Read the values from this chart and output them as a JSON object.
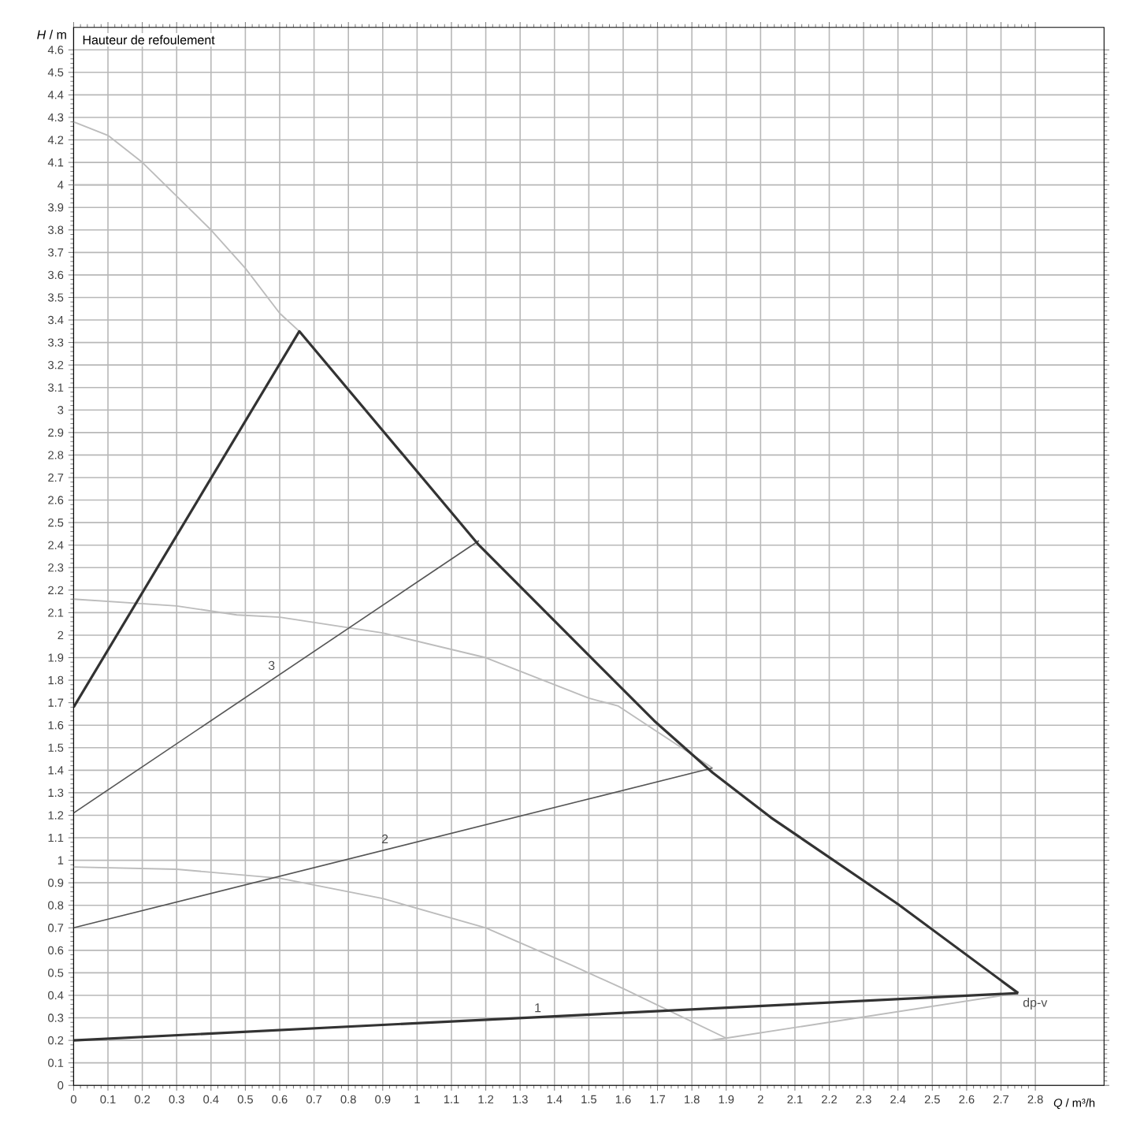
{
  "chart_data": {
    "type": "line",
    "xlabel": "*Q* / m³/h",
    "ylabel": "*H* / m",
    "xlim": [
      0,
      3.0
    ],
    "ylim": [
      0,
      4.7
    ],
    "xticks": [
      0,
      0.1,
      0.2,
      0.3,
      0.4,
      0.5,
      0.6,
      0.7,
      0.8,
      0.9,
      1,
      1.1,
      1.2,
      1.3,
      1.4,
      1.5,
      1.6,
      1.7,
      1.8,
      1.9,
      2,
      2.1,
      2.2,
      2.3,
      2.4,
      2.5,
      2.6,
      2.7,
      2.8
    ],
    "yticks": [
      0,
      0.1,
      0.2,
      0.3,
      0.4,
      0.5,
      0.6,
      0.7,
      0.8,
      0.9,
      1,
      1.1,
      1.2,
      1.3,
      1.4,
      1.5,
      1.6,
      1.7,
      1.8,
      1.9,
      2,
      2.1,
      2.2,
      2.3,
      2.4,
      2.5,
      2.6,
      2.7,
      2.8,
      2.9,
      3,
      3.1,
      3.2,
      3.3,
      3.4,
      3.5,
      3.6,
      3.7,
      3.8,
      3.9,
      4,
      4.1,
      4.2,
      4.3,
      4.4,
      4.5,
      4.6
    ],
    "grid": true,
    "series": [
      {
        "color": "#bcbcbc",
        "x": [
          0,
          0.1,
          0.2,
          0.3,
          0.4,
          0.5,
          0.6,
          0.657
        ],
        "values": [
          4.28,
          4.22,
          4.1,
          3.95,
          3.8,
          3.63,
          3.43,
          3.35
        ]
      },
      {
        "color": "#bcbcbc",
        "x": [
          0,
          0.3
        ],
        "values": [
          4.0,
          4.0
        ]
      },
      {
        "color": "#bcbcbc",
        "x": [
          0,
          0.3,
          0.475,
          0.6,
          0.9,
          1.2,
          1.5,
          1.586,
          1.7,
          1.86
        ],
        "values": [
          2.16,
          2.13,
          2.09,
          2.08,
          2.01,
          1.9,
          1.72,
          1.685,
          1.57,
          1.41
        ]
      },
      {
        "color": "#bcbcbc",
        "x": [
          0,
          0.3,
          0.6,
          0.9,
          1.2,
          1.447,
          1.6,
          1.75,
          1.9
        ],
        "values": [
          0.97,
          0.96,
          0.92,
          0.83,
          0.7,
          0.536,
          0.43,
          0.32,
          0.21
        ]
      },
      {
        "color": "#bcbcbc",
        "x": [
          1.85,
          1.9,
          2.75
        ],
        "values": [
          0.2,
          0.21,
          0.41
        ]
      },
      {
        "color": "#555555",
        "x": [
          0,
          1.86
        ],
        "values": [
          0.7,
          1.41
        ]
      },
      {
        "color": "#555555",
        "x": [
          0,
          1.18
        ],
        "values": [
          1.21,
          2.42
        ]
      },
      {
        "color": "#333333",
        "x": [
          0,
          0.657,
          1.18,
          1.69,
          1.86,
          2.03,
          2.4,
          2.75
        ],
        "values": [
          1.68,
          3.35,
          2.4,
          1.62,
          1.39,
          1.19,
          0.805,
          0.41
        ]
      },
      {
        "color": "#333333",
        "x": [
          0,
          2.75
        ],
        "values": [
          0.2,
          0.41
        ]
      }
    ],
    "annotations": [
      "Hauteur de refoulement",
      {
        "text": "1",
        "x": 1.375,
        "y": 0.305
      },
      {
        "text": "2",
        "x": 0.93,
        "y": 1.055
      },
      {
        "text": "3",
        "x": 0.6,
        "y": 1.825
      },
      {
        "text": "dp-v",
        "x": 2.75,
        "y": 0.41
      }
    ]
  }
}
